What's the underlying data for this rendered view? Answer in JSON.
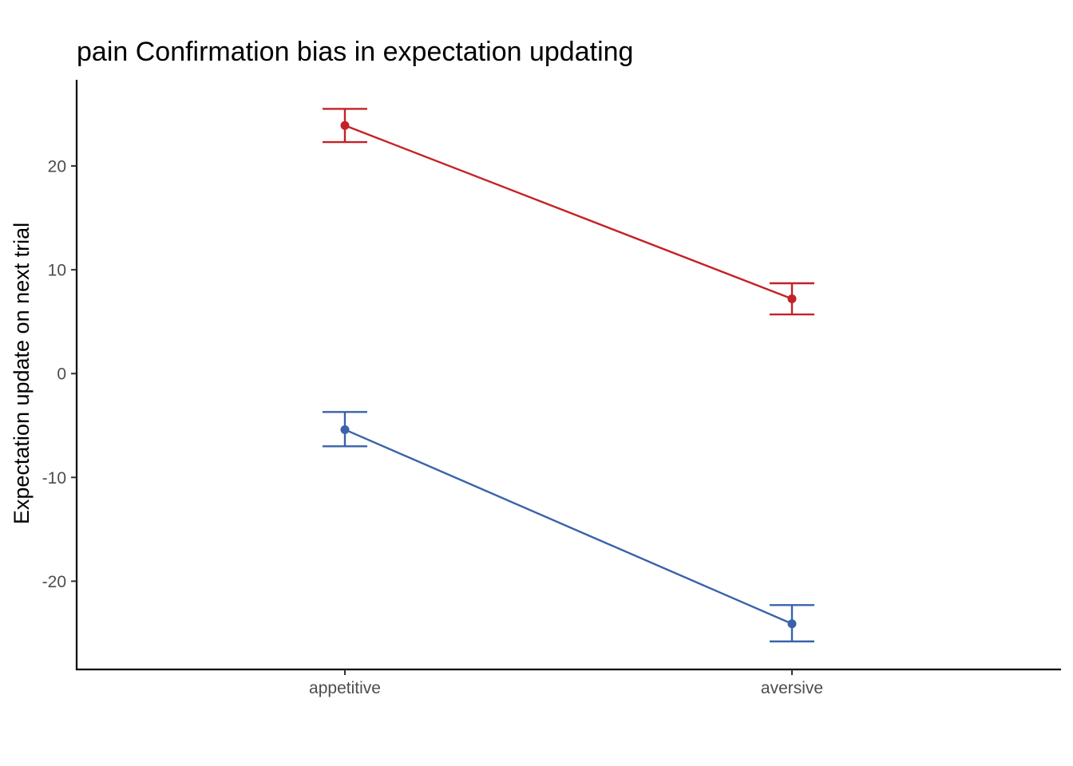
{
  "chart_data": {
    "type": "line",
    "title": "pain Confirmation bias in expectation updating",
    "xlabel": "",
    "ylabel": "Expectation update on next trial",
    "categories": [
      "appetitive",
      "aversive"
    ],
    "yticks": [
      -20,
      -10,
      0,
      10,
      20
    ],
    "ylim": [
      -28.5,
      28.3
    ],
    "grid": false,
    "legend": "none",
    "series": [
      {
        "color": "#C42126",
        "values": [
          23.9,
          7.2
        ],
        "error_low": [
          22.3,
          5.7
        ],
        "error_high": [
          25.5,
          8.7
        ]
      },
      {
        "color": "#3A62AA",
        "values": [
          -5.4,
          -24.1
        ],
        "error_low": [
          -7.0,
          -25.8
        ],
        "error_high": [
          -3.7,
          -22.3
        ]
      }
    ]
  }
}
